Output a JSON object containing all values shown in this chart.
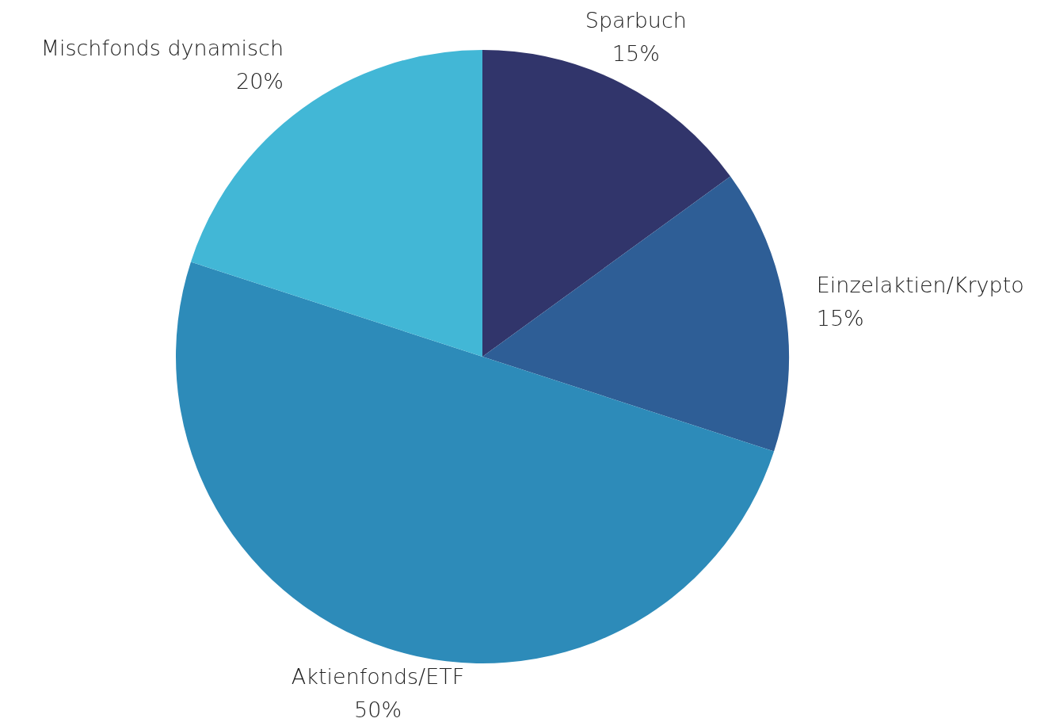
{
  "chart_data": {
    "type": "pie",
    "categories": [
      "Sparbuch",
      "Einzelaktien/Krypto",
      "Aktienfonds/ETF",
      "Mischfonds dynamisch"
    ],
    "values": [
      15,
      15,
      50,
      20
    ],
    "value_labels": [
      "15%",
      "15%",
      "50%",
      "20%"
    ],
    "colors": [
      "#31356b",
      "#2e5e96",
      "#2d8bb9",
      "#42b7d6"
    ],
    "legend": false
  }
}
